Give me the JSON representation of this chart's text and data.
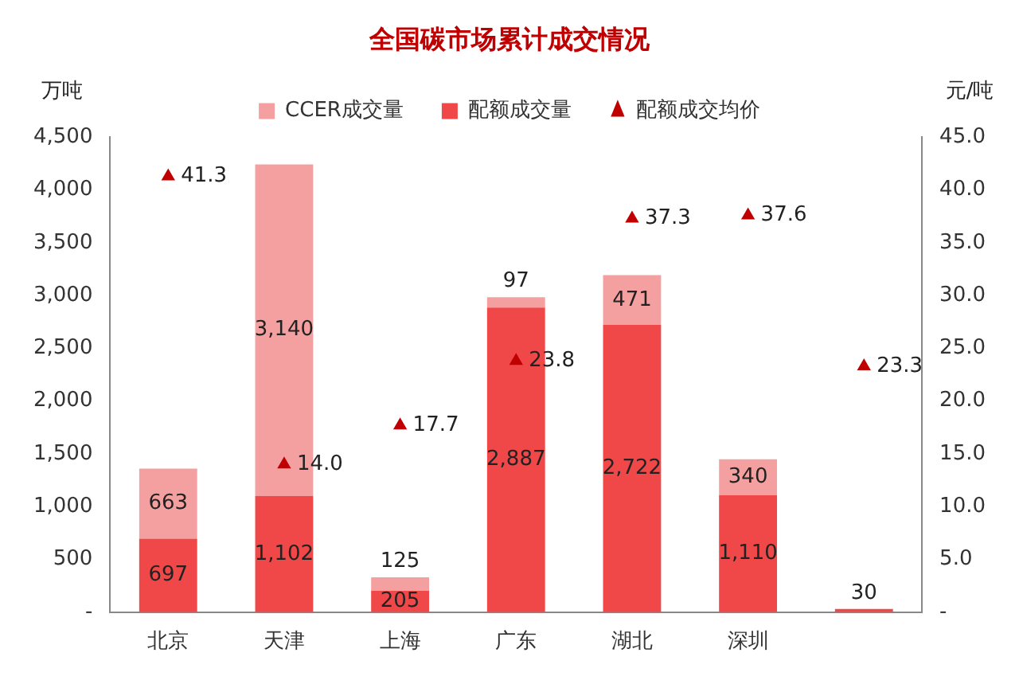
{
  "chart_data": {
    "type": "bar",
    "title": "全国碳市场累计成交情况",
    "ylabel": "万吨",
    "y2label": "元/吨",
    "categories": [
      "北京",
      "天津",
      "上海",
      "广东",
      "湖北",
      "深圳",
      null
    ],
    "stacked": true,
    "series": [
      {
        "name": "配额成交量",
        "color": "#f04848",
        "values": [
          697,
          1102,
          205,
          2887,
          2722,
          1110,
          30
        ],
        "value_labels": [
          "697",
          "1,102",
          "205",
          "2,887",
          "2,722",
          "1,110",
          "30"
        ]
      },
      {
        "name": "CCER成交量",
        "color": "#f4a0a0",
        "values": [
          663,
          3140,
          125,
          97,
          471,
          340,
          null
        ],
        "value_labels": [
          "663",
          "3,140",
          "125",
          "97",
          "471",
          "340",
          null
        ]
      },
      {
        "name": "配额成交均价",
        "type": "scatter",
        "axis": "y2",
        "marker": "triangle",
        "color": "#c00000",
        "values": [
          41.3,
          14.0,
          17.7,
          23.8,
          37.3,
          37.6,
          23.3
        ],
        "value_labels": [
          "41.3",
          "14.0",
          "17.7",
          "23.8",
          "37.3",
          "37.6",
          "23.3"
        ]
      }
    ],
    "ylim": [
      0,
      4500
    ],
    "yticks": [
      {
        "value": 0,
        "label": "-"
      },
      {
        "value": 500,
        "label": "500"
      },
      {
        "value": 1000,
        "label": "1,000"
      },
      {
        "value": 1500,
        "label": "1,500"
      },
      {
        "value": 2000,
        "label": "2,000"
      },
      {
        "value": 2500,
        "label": "2,500"
      },
      {
        "value": 3000,
        "label": "3,000"
      },
      {
        "value": 3500,
        "label": "3,500"
      },
      {
        "value": 4000,
        "label": "4,000"
      },
      {
        "value": 4500,
        "label": "4,500"
      }
    ],
    "y2lim": [
      0,
      45
    ],
    "y2ticks": [
      {
        "value": 0,
        "label": "-"
      },
      {
        "value": 5,
        "label": "5.0"
      },
      {
        "value": 10,
        "label": "10.0"
      },
      {
        "value": 15,
        "label": "15.0"
      },
      {
        "value": 20,
        "label": "20.0"
      },
      {
        "value": 25,
        "label": "25.0"
      },
      {
        "value": 30,
        "label": "30.0"
      },
      {
        "value": 35,
        "label": "35.0"
      },
      {
        "value": 40,
        "label": "40.0"
      },
      {
        "value": 45,
        "label": "45.0"
      }
    ],
    "grid": false,
    "legend": "top"
  }
}
